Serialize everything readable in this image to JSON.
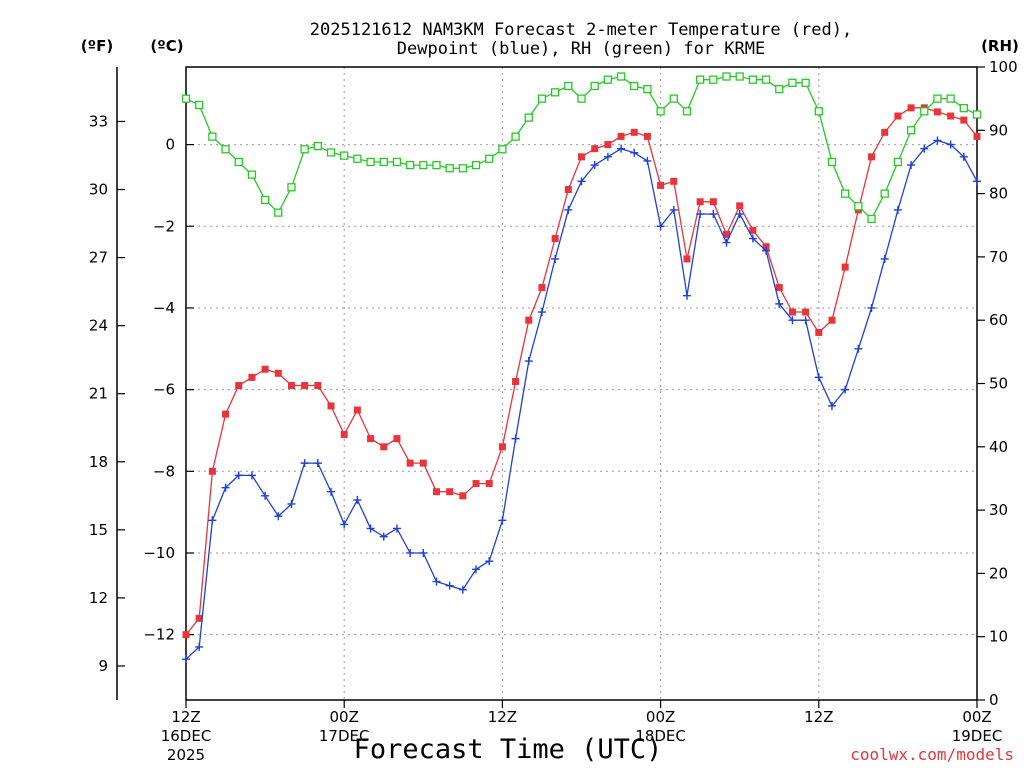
{
  "chart_data": {
    "type": "line",
    "title_line1": "2025121612 NAM3KM Forecast 2-meter Temperature (red),",
    "title_line2": "Dewpoint (blue), RH (green) for KRME",
    "xlabel": "Forecast Time (UTC)",
    "credit": "coolwx.com/models",
    "colors": {
      "temperature": "#e8343c",
      "dewpoint": "#1f3fdc",
      "rh": "#22cc22",
      "credit": "#e8343c"
    },
    "units": {
      "fahrenheit": "(ºF)",
      "celsius": "(ºC)",
      "rh": "(RH)"
    },
    "x_range_hours": [
      0,
      60
    ],
    "x_ticks": [
      {
        "hour": 0,
        "line1": "12Z",
        "line2": "16DEC",
        "line3": "2025"
      },
      {
        "hour": 12,
        "line1": "00Z",
        "line2": "17DEC",
        "line3": ""
      },
      {
        "hour": 24,
        "line1": "12Z",
        "line2": "",
        "line3": ""
      },
      {
        "hour": 36,
        "line1": "00Z",
        "line2": "18DEC",
        "line3": ""
      },
      {
        "hour": 48,
        "line1": "12Z",
        "line2": "",
        "line3": ""
      },
      {
        "hour": 60,
        "line1": "00Z",
        "line2": "19DEC",
        "line3": ""
      }
    ],
    "celsius_axis": {
      "range": [
        -13.6,
        1.9
      ],
      "ticks": [
        0,
        -2,
        -4,
        -6,
        -8,
        -10,
        -12
      ],
      "labels": [
        "0",
        "−2",
        "−4",
        "−6",
        "−8",
        "−10",
        "−12"
      ]
    },
    "fahrenheit_axis": {
      "range": [
        7.5,
        35.4
      ],
      "ticks": [
        33,
        30,
        27,
        24,
        21,
        18,
        15,
        12,
        9
      ],
      "labels": [
        "33",
        "30",
        "27",
        "24",
        "21",
        "18",
        "15",
        "12",
        "9"
      ]
    },
    "rh_axis": {
      "range": [
        0,
        100
      ],
      "ticks": [
        0,
        10,
        20,
        30,
        40,
        50,
        60,
        70,
        80,
        90,
        100
      ],
      "labels": [
        "0",
        "10",
        "20",
        "30",
        "40",
        "50",
        "60",
        "70",
        "80",
        "90",
        "100"
      ]
    },
    "hours": [
      0,
      1,
      2,
      3,
      4,
      5,
      6,
      7,
      8,
      9,
      10,
      11,
      12,
      13,
      14,
      15,
      16,
      17,
      18,
      19,
      20,
      21,
      22,
      23,
      24,
      25,
      26,
      27,
      28,
      29,
      30,
      31,
      32,
      33,
      34,
      35,
      36,
      37,
      38,
      39,
      40,
      41,
      42,
      43,
      44,
      45,
      46,
      47,
      48,
      49,
      50,
      51,
      52,
      53,
      54,
      55,
      56,
      57,
      58,
      59,
      60
    ],
    "series": [
      {
        "name": "Temperature (°C)",
        "key": "temperature",
        "marker": "filled-square",
        "values": [
          -12,
          -11.6,
          -8,
          -6.6,
          -5.9,
          -5.7,
          -5.5,
          -5.6,
          -5.9,
          -5.9,
          -5.9,
          -6.4,
          -7.1,
          -6.5,
          -7.2,
          -7.4,
          -7.2,
          -7.8,
          -7.8,
          -8.5,
          -8.5,
          -8.6,
          -8.3,
          -8.3,
          -7.4,
          -5.8,
          -4.3,
          -3.5,
          -2.3,
          -1.1,
          -0.3,
          -0.1,
          0,
          0.2,
          0.3,
          0.2,
          -1,
          -0.9,
          -2.8,
          -1.4,
          -1.4,
          -2.2,
          -1.5,
          -2.1,
          -2.5,
          -3.5,
          -4.1,
          -4.1,
          -4.6,
          -4.3,
          -3,
          -1.6,
          -0.3,
          0.3,
          0.7,
          0.9,
          0.9,
          0.8,
          0.7,
          0.6,
          0.2
        ]
      },
      {
        "name": "Dewpoint (°C)",
        "key": "dewpoint",
        "marker": "plus",
        "values": [
          -12.6,
          -12.3,
          -9.2,
          -8.4,
          -8.1,
          -8.1,
          -8.6,
          -9.1,
          -8.8,
          -7.8,
          -7.8,
          -8.5,
          -9.3,
          -8.7,
          -9.4,
          -9.6,
          -9.4,
          -10,
          -10,
          -10.7,
          -10.8,
          -10.9,
          -10.4,
          -10.2,
          -9.2,
          -7.2,
          -5.3,
          -4.1,
          -2.8,
          -1.6,
          -0.9,
          -0.5,
          -0.3,
          -0.1,
          -0.2,
          -0.4,
          -2,
          -1.6,
          -3.7,
          -1.7,
          -1.7,
          -2.4,
          -1.7,
          -2.3,
          -2.6,
          -3.9,
          -4.3,
          -4.3,
          -5.7,
          -6.4,
          -6,
          -5,
          -4,
          -2.8,
          -1.6,
          -0.5,
          -0.1,
          0.1,
          0,
          -0.3,
          -0.9
        ]
      },
      {
        "name": "RH (%)",
        "key": "rh",
        "marker": "open-square",
        "values": [
          95,
          94,
          89,
          87,
          85,
          83,
          79,
          77,
          81,
          87,
          87.5,
          86.5,
          86,
          85.5,
          85,
          85,
          85,
          84.5,
          84.5,
          84.5,
          84,
          84,
          84.5,
          85.5,
          87,
          89,
          92,
          95,
          96,
          97,
          95,
          97,
          98,
          98.5,
          97,
          96.5,
          93,
          95,
          93,
          98,
          98,
          98.5,
          98.5,
          98,
          98,
          96.5,
          97.5,
          97.5,
          93,
          85,
          80,
          78,
          76,
          80,
          85,
          90,
          93,
          95,
          95,
          93.5,
          92.5
        ]
      }
    ]
  }
}
